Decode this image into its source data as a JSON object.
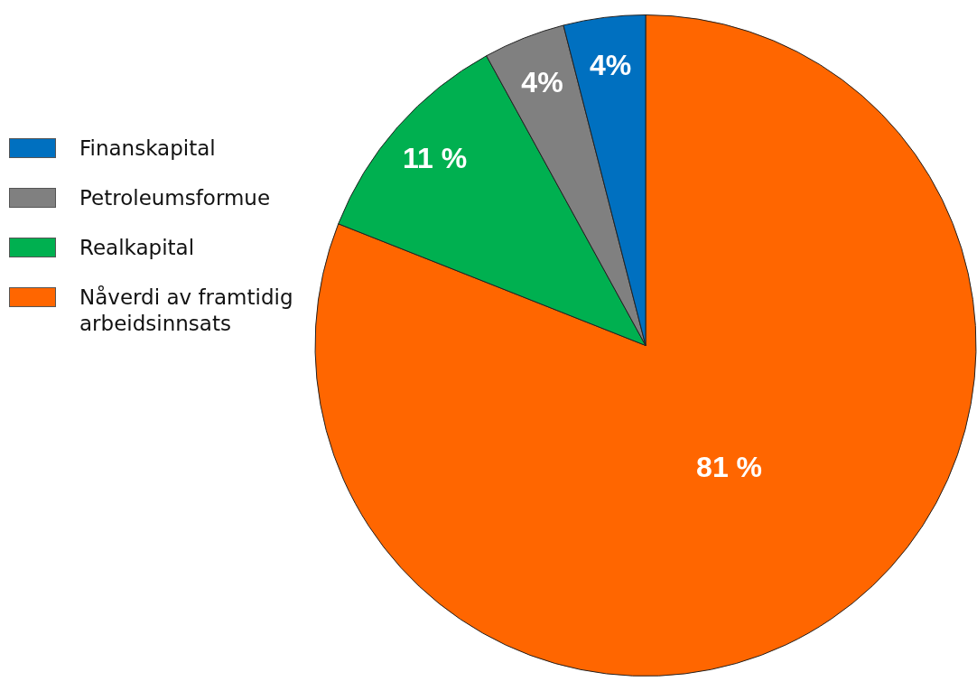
{
  "chart_data": {
    "type": "pie",
    "categories": [
      "Finanskapital",
      "Petroleumsformue",
      "Realkapital",
      "Nåverdi av framtidig arbeidsinnsats"
    ],
    "values": [
      4,
      4,
      11,
      81
    ],
    "colors": [
      "#0070c0",
      "#808080",
      "#00b050",
      "#ff6600"
    ],
    "value_labels": [
      "4%",
      "4%",
      "11 %",
      "81 %"
    ],
    "legend": "left"
  }
}
